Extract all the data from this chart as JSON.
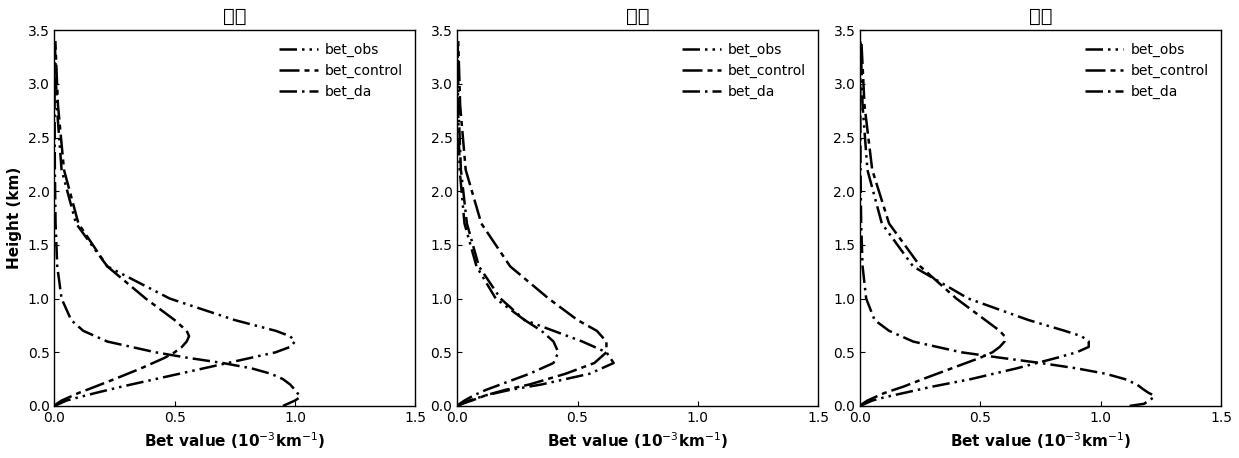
{
  "panels": [
    {
      "title": "延庆",
      "bet_obs_h": [
        0.0,
        0.02,
        0.05,
        0.08,
        0.12,
        0.18,
        0.25,
        0.35,
        0.45,
        0.5,
        0.55,
        0.6,
        0.65,
        0.7,
        0.8,
        1.0,
        1.3,
        1.7,
        2.2,
        2.8,
        3.4
      ],
      "bet_obs_v": [
        0.0,
        0.02,
        0.05,
        0.1,
        0.17,
        0.28,
        0.42,
        0.62,
        0.82,
        0.92,
        0.98,
        1.0,
        0.98,
        0.92,
        0.75,
        0.48,
        0.22,
        0.09,
        0.03,
        0.01,
        0.002
      ],
      "bet_control_h": [
        0.0,
        0.02,
        0.05,
        0.08,
        0.12,
        0.18,
        0.25,
        0.35,
        0.45,
        0.5,
        0.55,
        0.6,
        0.65,
        0.7,
        0.8,
        1.0,
        1.3,
        1.7,
        2.2,
        2.8,
        3.4
      ],
      "bet_control_v": [
        0.0,
        0.01,
        0.03,
        0.06,
        0.1,
        0.17,
        0.25,
        0.36,
        0.46,
        0.5,
        0.53,
        0.55,
        0.56,
        0.55,
        0.5,
        0.38,
        0.22,
        0.1,
        0.04,
        0.015,
        0.004
      ],
      "bet_da_h": [
        0.0,
        0.02,
        0.05,
        0.08,
        0.1,
        0.12,
        0.15,
        0.2,
        0.25,
        0.3,
        0.35,
        0.4,
        0.45,
        0.5,
        0.6,
        0.7,
        0.8,
        1.0,
        1.3,
        1.7,
        2.2,
        2.8,
        3.4
      ],
      "bet_da_v": [
        0.95,
        0.97,
        1.0,
        1.02,
        1.02,
        1.01,
        1.0,
        0.98,
        0.95,
        0.9,
        0.82,
        0.7,
        0.55,
        0.42,
        0.22,
        0.12,
        0.07,
        0.03,
        0.012,
        0.005,
        0.002,
        0.001,
        0.0
      ]
    },
    {
      "title": "房山",
      "bet_obs_h": [
        0.0,
        0.02,
        0.05,
        0.1,
        0.15,
        0.2,
        0.3,
        0.4,
        0.5,
        0.6,
        0.7,
        0.8,
        1.0,
        1.3,
        1.7,
        2.2,
        2.8,
        3.4
      ],
      "bet_obs_v": [
        0.0,
        0.02,
        0.05,
        0.12,
        0.22,
        0.35,
        0.55,
        0.65,
        0.62,
        0.52,
        0.4,
        0.28,
        0.16,
        0.08,
        0.03,
        0.01,
        0.003,
        0.001
      ],
      "bet_control_h": [
        0.0,
        0.02,
        0.05,
        0.1,
        0.15,
        0.2,
        0.3,
        0.4,
        0.5,
        0.6,
        0.7,
        0.8,
        1.0,
        1.3,
        1.7,
        2.2,
        2.8,
        3.4
      ],
      "bet_control_v": [
        0.0,
        0.02,
        0.06,
        0.12,
        0.2,
        0.3,
        0.45,
        0.57,
        0.62,
        0.62,
        0.58,
        0.5,
        0.38,
        0.22,
        0.1,
        0.035,
        0.012,
        0.004
      ],
      "bet_da_h": [
        0.0,
        0.02,
        0.05,
        0.1,
        0.15,
        0.2,
        0.3,
        0.4,
        0.5,
        0.6,
        0.7,
        0.8,
        1.0,
        1.3,
        1.7,
        2.2,
        2.8,
        3.4
      ],
      "bet_da_v": [
        0.0,
        0.01,
        0.03,
        0.07,
        0.12,
        0.18,
        0.3,
        0.4,
        0.42,
        0.4,
        0.35,
        0.28,
        0.18,
        0.09,
        0.04,
        0.015,
        0.005,
        0.002
      ]
    },
    {
      "title": "南郊",
      "bet_obs_h": [
        0.0,
        0.02,
        0.05,
        0.08,
        0.12,
        0.18,
        0.25,
        0.35,
        0.45,
        0.5,
        0.55,
        0.6,
        0.65,
        0.7,
        0.8,
        1.0,
        1.3,
        1.7,
        2.2,
        2.8,
        3.4
      ],
      "bet_obs_v": [
        0.0,
        0.02,
        0.05,
        0.1,
        0.18,
        0.3,
        0.46,
        0.65,
        0.82,
        0.9,
        0.95,
        0.95,
        0.92,
        0.85,
        0.7,
        0.45,
        0.22,
        0.09,
        0.03,
        0.01,
        0.002
      ],
      "bet_control_h": [
        0.0,
        0.02,
        0.05,
        0.08,
        0.12,
        0.18,
        0.25,
        0.35,
        0.45,
        0.5,
        0.55,
        0.6,
        0.65,
        0.7,
        0.8,
        1.0,
        1.3,
        1.7,
        2.2,
        2.8,
        3.4
      ],
      "bet_control_v": [
        0.0,
        0.01,
        0.03,
        0.06,
        0.1,
        0.18,
        0.26,
        0.38,
        0.5,
        0.55,
        0.58,
        0.6,
        0.6,
        0.58,
        0.52,
        0.4,
        0.25,
        0.12,
        0.05,
        0.018,
        0.005
      ],
      "bet_da_h": [
        0.0,
        0.02,
        0.05,
        0.08,
        0.1,
        0.12,
        0.15,
        0.2,
        0.25,
        0.3,
        0.35,
        0.4,
        0.45,
        0.5,
        0.6,
        0.7,
        0.8,
        1.0,
        1.3,
        1.7,
        2.2,
        2.8,
        3.4
      ],
      "bet_da_v": [
        1.12,
        1.18,
        1.2,
        1.22,
        1.22,
        1.2,
        1.18,
        1.15,
        1.1,
        1.02,
        0.9,
        0.75,
        0.58,
        0.42,
        0.22,
        0.12,
        0.06,
        0.025,
        0.01,
        0.004,
        0.0015,
        0.0005,
        0.0
      ]
    }
  ],
  "line_color": "#000000",
  "xlabel": "Bet value (10$^{-3}$km$^{-1}$)",
  "ylabel": "Height (km)",
  "xlim": [
    0,
    1.5
  ],
  "ylim": [
    0,
    3.5
  ],
  "xticks": [
    0,
    0.5,
    1.0,
    1.5
  ],
  "yticks": [
    0,
    0.5,
    1.0,
    1.5,
    2.0,
    2.5,
    3.0,
    3.5
  ],
  "legend_labels": [
    "bet_obs",
    "bet_control",
    "bet_da"
  ],
  "title_fontsize": 14,
  "label_fontsize": 11,
  "tick_fontsize": 10,
  "legend_fontsize": 10,
  "background_color": "#ffffff"
}
